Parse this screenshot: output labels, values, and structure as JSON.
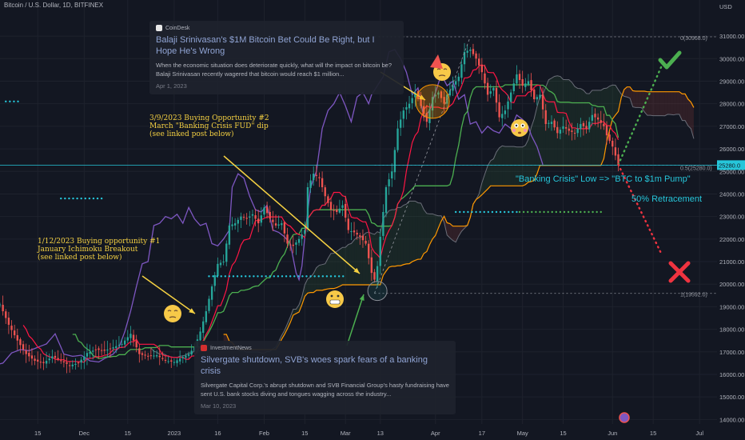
{
  "header": {
    "symbol": "Bitcoin / U.S. Dollar, 1D, BITFINEX"
  },
  "chart_data": {
    "type": "candlestick",
    "currency": "USD",
    "y_ticks": [
      14000,
      15000,
      16000,
      17000,
      18000,
      19000,
      20000,
      21000,
      22000,
      23000,
      24000,
      25000,
      26000,
      27000,
      28000,
      29000,
      30000,
      31000
    ],
    "ylim": [
      13800,
      32600
    ],
    "x_ticks": [
      "15",
      "Dec",
      "15",
      "2023",
      "16",
      "Feb",
      "15",
      "Mar",
      "13",
      "Apr",
      "17",
      "May",
      "15",
      "Jun",
      "15",
      "Jul"
    ],
    "x_ticks_day": [
      -16,
      0,
      15,
      31,
      46,
      62,
      76,
      90,
      102,
      121,
      137,
      151,
      165,
      182,
      196,
      212
    ],
    "xlim": [
      -29,
      218
    ],
    "price": {
      "label": "25280.0",
      "value": 25280
    },
    "fib_levels": [
      {
        "label": "0(30968.0)",
        "value": 30968
      },
      {
        "label": "0.5(25280.0)",
        "value": 25280
      },
      {
        "label": "1(19592.0)",
        "value": 19592
      }
    ],
    "close_series": [
      [
        -29,
        19100
      ],
      [
        -26,
        18200
      ],
      [
        -23,
        17500
      ],
      [
        -20,
        16900
      ],
      [
        -17,
        16600
      ],
      [
        -14,
        16500
      ],
      [
        -11,
        16800
      ],
      [
        -8,
        16600
      ],
      [
        -5,
        16400
      ],
      [
        -2,
        16500
      ],
      [
        1,
        16950
      ],
      [
        4,
        17100
      ],
      [
        7,
        17050
      ],
      [
        10,
        17200
      ],
      [
        13,
        17350
      ],
      [
        16,
        17800
      ],
      [
        19,
        16900
      ],
      [
        22,
        16800
      ],
      [
        25,
        16850
      ],
      [
        28,
        16600
      ],
      [
        31,
        16550
      ],
      [
        33,
        16700
      ],
      [
        36,
        16900
      ],
      [
        38,
        17200
      ],
      [
        40,
        17900
      ],
      [
        42,
        18800
      ],
      [
        44,
        19900
      ],
      [
        46,
        20900
      ],
      [
        48,
        21000
      ],
      [
        50,
        22600
      ],
      [
        52,
        22700
      ],
      [
        54,
        23000
      ],
      [
        56,
        22900
      ],
      [
        58,
        23100
      ],
      [
        60,
        22700
      ],
      [
        62,
        23400
      ],
      [
        64,
        22900
      ],
      [
        66,
        22600
      ],
      [
        68,
        22700
      ],
      [
        70,
        21800
      ],
      [
        72,
        21700
      ],
      [
        74,
        22000
      ],
      [
        76,
        22400
      ],
      [
        77,
        24300
      ],
      [
        79,
        24900
      ],
      [
        81,
        24700
      ],
      [
        83,
        23900
      ],
      [
        85,
        23300
      ],
      [
        87,
        23200
      ],
      [
        89,
        23500
      ],
      [
        91,
        22400
      ],
      [
        93,
        22300
      ],
      [
        95,
        22100
      ],
      [
        97,
        21800
      ],
      [
        99,
        20500
      ],
      [
        100,
        20200
      ],
      [
        101,
        20800
      ],
      [
        102,
        22100
      ],
      [
        104,
        24300
      ],
      [
        106,
        25000
      ],
      [
        108,
        26900
      ],
      [
        110,
        27700
      ],
      [
        112,
        28000
      ],
      [
        114,
        28500
      ],
      [
        116,
        27900
      ],
      [
        118,
        27200
      ],
      [
        120,
        28300
      ],
      [
        122,
        28500
      ],
      [
        124,
        28000
      ],
      [
        125,
        28400
      ],
      [
        127,
        28800
      ],
      [
        129,
        29200
      ],
      [
        131,
        30300
      ],
      [
        133,
        30400
      ],
      [
        135,
        30000
      ],
      [
        137,
        29400
      ],
      [
        139,
        28400
      ],
      [
        141,
        28700
      ],
      [
        143,
        27400
      ],
      [
        145,
        27700
      ],
      [
        147,
        28500
      ],
      [
        149,
        29300
      ],
      [
        151,
        28800
      ],
      [
        153,
        29000
      ],
      [
        155,
        28200
      ],
      [
        157,
        28400
      ],
      [
        159,
        27100
      ],
      [
        161,
        27200
      ],
      [
        163,
        26700
      ],
      [
        165,
        27000
      ],
      [
        167,
        26800
      ],
      [
        169,
        26700
      ],
      [
        171,
        27100
      ],
      [
        173,
        26900
      ],
      [
        175,
        27500
      ],
      [
        177,
        27300
      ],
      [
        179,
        27000
      ],
      [
        180,
        26600
      ],
      [
        182,
        26100
      ],
      [
        184,
        25300
      ]
    ],
    "projection_up": {
      "from": [
        184,
        25300
      ],
      "to": [
        199,
        29700
      ]
    },
    "projection_down": {
      "from": [
        184,
        25300
      ],
      "to": [
        199,
        21300
      ]
    },
    "annotations": {
      "left_buy": [
        "1/12/2023 Buying opportunity #1",
        "January Ichimoku Breakout",
        "(see linked post below)"
      ],
      "mid_buy": [
        "3/9/2023 Buying Opportunity #2",
        "March \"Banking Crisis FUD\" dip",
        "(see linked post below)"
      ],
      "banking_low": "\"Banking Crisis\" Low =>  \"BTC to $1m Pump\"",
      "retracement": "50% Retracement"
    }
  },
  "news": [
    {
      "source": "CoinDesk",
      "title": "Balaji Srinivasan's $1M Bitcoin Bet Could Be Right, but I Hope He's Wrong",
      "body": "When the economic situation does deteriorate quickly, what will the impact on bitcoin be? Balaji Srinivasan recently wagered that bitcoin would reach $1 million...",
      "date": "Apr 1, 2023"
    },
    {
      "source": "InvestmentNews",
      "title": "Silvergate shutdown, SVB's woes spark fears of a banking crisis",
      "body": "Silvergate Capital Corp.'s abrupt shutdown and SVB Financial Group's hasty fundraising have sent U.S. bank stocks diving and tongues wagging across the industry...",
      "date": "Mar 10, 2023"
    }
  ],
  "colors": {
    "background": "#131722",
    "up": "#26a69a",
    "down": "#ef5350",
    "tenkan": "#ff1744",
    "kijun": "#4caf50",
    "purple": "#7e57c2",
    "cloud_edge": "#ff9800",
    "cyan": "#26c6da",
    "annotation": "#f5d142",
    "green_check": "#4caf50",
    "red_cross": "#ef3340"
  }
}
